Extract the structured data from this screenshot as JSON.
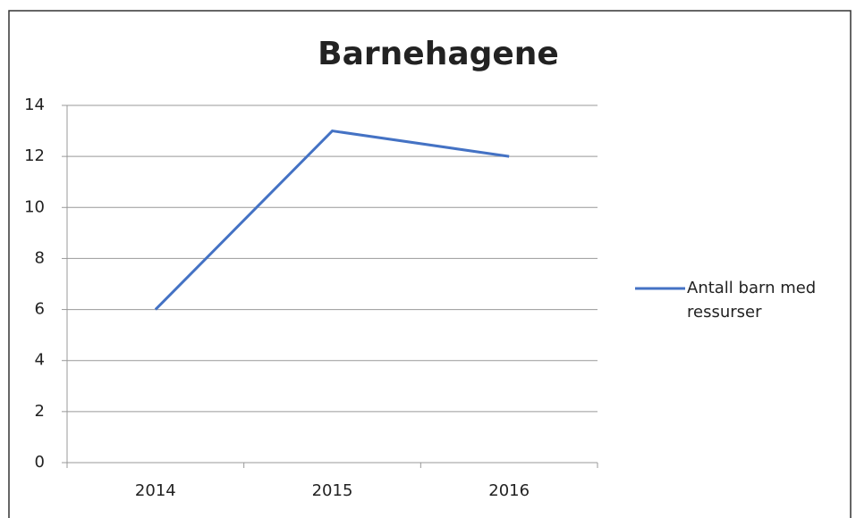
{
  "chart_data": {
    "type": "line",
    "title": "Barnehagene",
    "categories": [
      "2014",
      "2015",
      "2016"
    ],
    "series": [
      {
        "name": "Antall barn med ressurser",
        "color": "#4472c4",
        "values": [
          6,
          13,
          12
        ]
      }
    ],
    "ylim": [
      0,
      14
    ],
    "yticks": [
      0,
      2,
      4,
      6,
      8,
      10,
      12,
      14
    ],
    "grid": true,
    "legend": "right"
  }
}
